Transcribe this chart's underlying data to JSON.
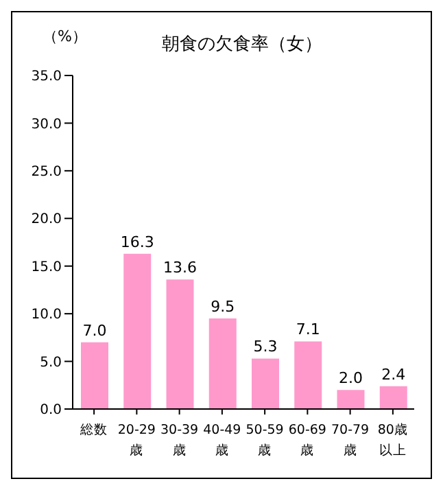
{
  "chart_data": {
    "type": "bar",
    "title": "朝食の欠食率（女）",
    "ylabel": "（%）",
    "categories": [
      "総数",
      "20-29歳",
      "30-39歳",
      "40-49歳",
      "50-59歳",
      "60-69歳",
      "70-79歳",
      "80歳以上"
    ],
    "values": [
      7.0,
      16.3,
      13.6,
      9.5,
      5.3,
      7.1,
      2.0,
      2.4
    ],
    "value_labels": [
      "7.0",
      "16.3",
      "13.6",
      "9.5",
      "5.3",
      "7.1",
      "2.0",
      "2.4"
    ],
    "color": "#ff99cc",
    "ylim": [
      0,
      35
    ],
    "yticks": [
      {
        "value": 0,
        "label": "0.0"
      },
      {
        "value": 5,
        "label": "5.0"
      },
      {
        "value": 10,
        "label": "10.0"
      },
      {
        "value": 15,
        "label": "15.0"
      },
      {
        "value": 20,
        "label": "20.0"
      },
      {
        "value": 25,
        "label": "25.0"
      },
      {
        "value": 30,
        "label": "30.0"
      },
      {
        "value": 35,
        "label": "35.0"
      }
    ],
    "grid": false
  }
}
